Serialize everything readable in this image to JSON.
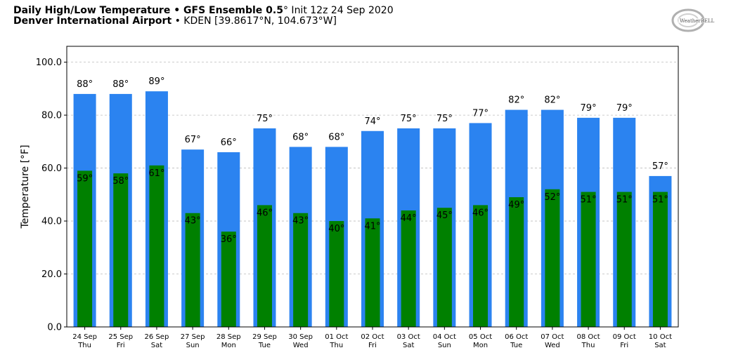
{
  "header": {
    "line1_bold": "Daily High/Low Temperature • GFS Ensemble 0.5",
    "line1_deg": "°",
    "line1_rest": " Init 12z 24 Sep 2020",
    "line2_bold": "Denver International Airport",
    "line2_rest": " • KDEN [39.8617°N, 104.673°W]"
  },
  "logo": {
    "text": "WeatherBELL"
  },
  "colors": {
    "high": "#2b83f0",
    "low": "#008000",
    "grid": "#bbbbbb"
  },
  "chart_data": {
    "type": "bar",
    "ylabel": "Temperature [°F]",
    "xlabel": "",
    "ylim": [
      0,
      106
    ],
    "yticks": [
      "0.0",
      "20.0",
      "40.0",
      "60.0",
      "80.0",
      "100.0"
    ],
    "ytick_values": [
      0,
      20,
      40,
      60,
      80,
      100
    ],
    "grid": true,
    "categories": [
      [
        "24 Sep",
        "Thu"
      ],
      [
        "25 Sep",
        "Fri"
      ],
      [
        "26 Sep",
        "Sat"
      ],
      [
        "27 Sep",
        "Sun"
      ],
      [
        "28 Sep",
        "Mon"
      ],
      [
        "29 Sep",
        "Tue"
      ],
      [
        "30 Sep",
        "Wed"
      ],
      [
        "01 Oct",
        "Thu"
      ],
      [
        "02 Oct",
        "Fri"
      ],
      [
        "03 Oct",
        "Sat"
      ],
      [
        "04 Oct",
        "Sun"
      ],
      [
        "05 Oct",
        "Mon"
      ],
      [
        "06 Oct",
        "Tue"
      ],
      [
        "07 Oct",
        "Wed"
      ],
      [
        "08 Oct",
        "Thu"
      ],
      [
        "09 Oct",
        "Fri"
      ],
      [
        "10 Oct",
        "Sat"
      ]
    ],
    "series": [
      {
        "key": "high",
        "values": [
          88,
          88,
          89,
          67,
          66,
          75,
          68,
          68,
          74,
          75,
          75,
          77,
          82,
          82,
          79,
          79,
          57
        ]
      },
      {
        "key": "low",
        "values": [
          59,
          58,
          61,
          43,
          36,
          46,
          43,
          40,
          41,
          44,
          45,
          46,
          49,
          52,
          51,
          51,
          51
        ]
      }
    ],
    "high_labels": [
      "88°",
      "88°",
      "89°",
      "67°",
      "66°",
      "75°",
      "68°",
      "68°",
      "74°",
      "75°",
      "75°",
      "77°",
      "82°",
      "82°",
      "79°",
      "79°",
      "57°"
    ],
    "low_labels": [
      "59°",
      "58°",
      "61°",
      "43°",
      "36°",
      "46°",
      "43°",
      "40°",
      "41°",
      "44°",
      "45°",
      "46°",
      "49°",
      "52°",
      "51°",
      "51°",
      "51°"
    ]
  }
}
